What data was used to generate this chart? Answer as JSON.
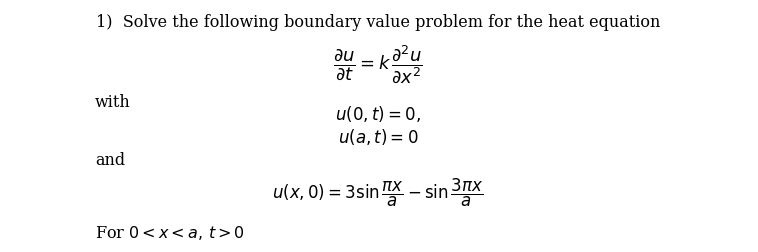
{
  "background_color": "#ffffff",
  "text_color": "#000000",
  "title_text": "1)  Solve the following boundary value problem for the heat equation",
  "title_fontsize": 11.5,
  "pde_fontsize": 13,
  "body_fontsize": 11.5,
  "math_fontsize": 12,
  "ic_fontsize": 12
}
